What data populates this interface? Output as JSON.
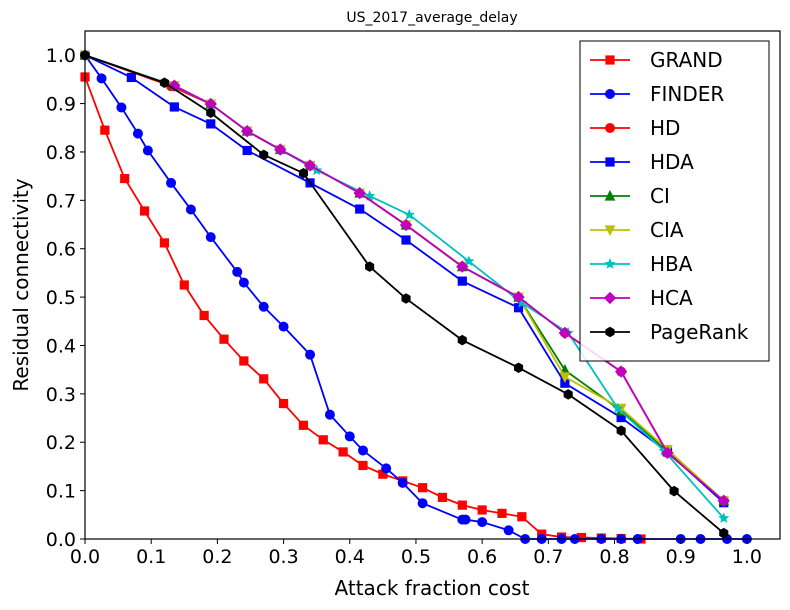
{
  "chart_data": {
    "type": "line",
    "title": "US_2017_average_delay",
    "xlabel": "Attack fraction cost",
    "ylabel": "Residual connectivity",
    "xlim": [
      0.0,
      1.05
    ],
    "ylim": [
      0.0,
      1.05
    ],
    "xticks": [
      "0.0",
      "0.1",
      "0.2",
      "0.3",
      "0.4",
      "0.5",
      "0.6",
      "0.7",
      "0.8",
      "0.9",
      "1.0"
    ],
    "yticks": [
      "0.0",
      "0.1",
      "0.2",
      "0.3",
      "0.4",
      "0.5",
      "0.6",
      "0.7",
      "0.8",
      "0.9",
      "1.0"
    ],
    "grid": false,
    "legend_position": "top-right",
    "series": [
      {
        "name": "GRAND",
        "color": "#ff0000",
        "marker": "square",
        "x": [
          0.0,
          0.03,
          0.06,
          0.09,
          0.12,
          0.15,
          0.18,
          0.21,
          0.24,
          0.27,
          0.3,
          0.33,
          0.36,
          0.39,
          0.42,
          0.45,
          0.48,
          0.51,
          0.54,
          0.57,
          0.6,
          0.63,
          0.66,
          0.69,
          0.72,
          0.75,
          0.78,
          0.81,
          0.84
        ],
        "y": [
          0.955,
          0.845,
          0.745,
          0.678,
          0.612,
          0.525,
          0.462,
          0.413,
          0.368,
          0.331,
          0.28,
          0.235,
          0.205,
          0.18,
          0.152,
          0.134,
          0.12,
          0.106,
          0.086,
          0.07,
          0.06,
          0.053,
          0.046,
          0.01,
          0.004,
          0.003,
          0.002,
          0.001,
          0.0
        ]
      },
      {
        "name": "FINDER",
        "color": "#0000ff",
        "marker": "circle",
        "x": [
          0.0,
          0.025,
          0.055,
          0.08,
          0.095,
          0.13,
          0.16,
          0.19,
          0.23,
          0.24,
          0.27,
          0.3,
          0.34,
          0.37,
          0.4,
          0.42,
          0.455,
          0.48,
          0.51,
          0.57,
          0.575,
          0.6,
          0.64,
          0.665,
          0.69,
          0.72,
          0.74,
          0.78,
          0.81,
          0.835,
          0.9,
          0.93,
          0.97,
          1.0
        ],
        "y": [
          1.0,
          0.952,
          0.892,
          0.838,
          0.803,
          0.736,
          0.681,
          0.624,
          0.552,
          0.53,
          0.48,
          0.439,
          0.381,
          0.257,
          0.212,
          0.183,
          0.146,
          0.116,
          0.074,
          0.04,
          0.04,
          0.035,
          0.018,
          0.0,
          0.0,
          0.0,
          0.0,
          0.0,
          0.0,
          0.0,
          0.0,
          0.0,
          0.0,
          0.0
        ]
      },
      {
        "name": "HD",
        "color": "#ff0000",
        "marker": "circle",
        "x": [
          0.0,
          0.13,
          0.19,
          0.245,
          0.295,
          0.34,
          0.415,
          0.485,
          0.57,
          0.655,
          0.725,
          0.81,
          0.88,
          0.965
        ],
        "y": [
          1.0,
          0.936,
          0.899,
          0.843,
          0.805,
          0.772,
          0.715,
          0.649,
          0.563,
          0.5,
          0.426,
          0.346,
          0.178,
          0.079
        ]
      },
      {
        "name": "HDA",
        "color": "#0000ff",
        "marker": "square",
        "x": [
          0.0,
          0.07,
          0.135,
          0.19,
          0.245,
          0.34,
          0.415,
          0.485,
          0.57,
          0.655,
          0.725,
          0.81,
          0.88,
          0.965
        ],
        "y": [
          1.0,
          0.954,
          0.893,
          0.858,
          0.803,
          0.736,
          0.682,
          0.618,
          0.533,
          0.478,
          0.322,
          0.251,
          0.18,
          0.075
        ]
      },
      {
        "name": "CI",
        "color": "#008000",
        "marker": "triangle-up",
        "x": [
          0.0,
          0.135,
          0.19,
          0.245,
          0.295,
          0.34,
          0.415,
          0.485,
          0.57,
          0.655,
          0.725,
          0.81,
          0.88,
          0.965
        ],
        "y": [
          1.0,
          0.937,
          0.899,
          0.843,
          0.805,
          0.772,
          0.715,
          0.649,
          0.563,
          0.5,
          0.349,
          0.265,
          0.182,
          0.079
        ]
      },
      {
        "name": "CIA",
        "color": "#bfbf00",
        "marker": "triangle-down",
        "x": [
          0.0,
          0.135,
          0.19,
          0.245,
          0.295,
          0.34,
          0.415,
          0.485,
          0.57,
          0.655,
          0.725,
          0.81,
          0.88,
          0.965
        ],
        "y": [
          1.0,
          0.937,
          0.899,
          0.843,
          0.805,
          0.772,
          0.715,
          0.649,
          0.563,
          0.5,
          0.335,
          0.27,
          0.185,
          0.079
        ]
      },
      {
        "name": "HBA",
        "color": "#00bfbf",
        "marker": "star",
        "x": [
          0.0,
          0.135,
          0.19,
          0.245,
          0.295,
          0.35,
          0.43,
          0.49,
          0.58,
          0.66,
          0.73,
          0.805,
          0.875,
          0.965
        ],
        "y": [
          1.0,
          0.937,
          0.899,
          0.843,
          0.805,
          0.762,
          0.709,
          0.67,
          0.574,
          0.488,
          0.426,
          0.27,
          0.182,
          0.043
        ]
      },
      {
        "name": "HCA",
        "color": "#bf00bf",
        "marker": "diamond",
        "x": [
          0.135,
          0.19,
          0.245,
          0.295,
          0.34,
          0.415,
          0.485,
          0.57,
          0.655,
          0.725,
          0.81,
          0.88,
          0.965
        ],
        "y": [
          0.937,
          0.899,
          0.843,
          0.805,
          0.772,
          0.715,
          0.649,
          0.563,
          0.5,
          0.426,
          0.346,
          0.178,
          0.079
        ]
      },
      {
        "name": "PageRank",
        "color": "#000000",
        "marker": "hexagon",
        "x": [
          0.0,
          0.12,
          0.19,
          0.27,
          0.33,
          0.43,
          0.485,
          0.57,
          0.655,
          0.73,
          0.81,
          0.89,
          0.965
        ],
        "y": [
          1.0,
          0.943,
          0.881,
          0.794,
          0.756,
          0.563,
          0.497,
          0.411,
          0.354,
          0.299,
          0.224,
          0.099,
          0.012
        ]
      }
    ]
  }
}
